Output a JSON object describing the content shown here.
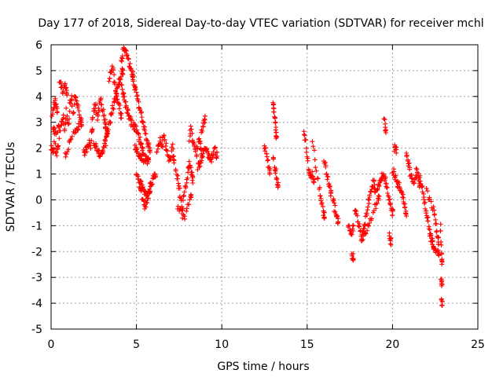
{
  "chart_data": {
    "type": "scatter",
    "title": "Day 177 of 2018, Sidereal Day-to-day VTEC variation (SDTVAR) for receiver mchl",
    "xlabel": "GPS time / hours",
    "ylabel": "SDTVAR / TECUs",
    "xlim": [
      0,
      25
    ],
    "ylim": [
      -5,
      6
    ],
    "x_ticks": [
      "0",
      "5",
      "10",
      "15",
      "20",
      "25"
    ],
    "y_ticks": [
      "-5",
      "-4",
      "-3",
      "-2",
      "-1",
      "0",
      "1",
      "2",
      "3",
      "4",
      "5",
      "6"
    ],
    "grid": true,
    "marker": "+",
    "series": [
      {
        "name": "SDTVAR",
        "color": "#ff0000",
        "segments": [
          {
            "x": [
              0.0,
              0.1,
              0.2,
              0.3,
              0.4
            ],
            "y": [
              2.0,
              1.8,
              2.2,
              1.7,
              2.0
            ]
          },
          {
            "x": [
              0.05,
              0.15,
              0.25,
              0.35
            ],
            "y": [
              3.3,
              3.6,
              3.9,
              3.5
            ]
          },
          {
            "x": [
              0.1,
              0.2,
              0.3,
              0.45
            ],
            "y": [
              2.8,
              2.7,
              2.6,
              2.9
            ]
          },
          {
            "x": [
              0.5,
              0.6,
              0.7,
              0.8,
              0.9,
              1.0,
              1.1,
              1.2,
              1.3,
              1.4,
              1.5,
              1.6,
              1.7,
              1.8
            ],
            "y": [
              2.4,
              2.9,
              3.2,
              2.6,
              3.5,
              2.8,
              3.7,
              3.9,
              3.3,
              4.1,
              3.8,
              3.6,
              3.2,
              3.0
            ]
          },
          {
            "x": [
              0.5,
              0.6,
              0.7,
              0.8,
              0.9
            ],
            "y": [
              4.6,
              4.4,
              4.2,
              4.5,
              4.1
            ]
          },
          {
            "x": [
              0.8,
              1.0,
              1.2,
              1.4,
              1.6
            ],
            "y": [
              1.7,
              2.1,
              2.4,
              2.7,
              2.8
            ]
          },
          {
            "x": [
              1.9,
              2.0,
              2.1,
              2.2,
              2.3,
              2.4
            ],
            "y": [
              1.8,
              1.9,
              2.0,
              2.2,
              2.1,
              2.6
            ]
          },
          {
            "x": [
              2.4,
              2.5,
              2.6,
              2.7,
              2.8,
              2.9,
              3.0,
              3.1,
              3.2
            ],
            "y": [
              3.1,
              3.4,
              3.7,
              3.2,
              3.5,
              3.8,
              3.6,
              3.3,
              2.9
            ]
          },
          {
            "x": [
              2.5,
              2.6,
              2.7,
              2.8,
              2.9,
              3.0,
              3.1,
              3.2,
              3.3
            ],
            "y": [
              2.3,
              2.1,
              1.9,
              1.8,
              1.7,
              1.9,
              2.0,
              2.4,
              2.7
            ]
          },
          {
            "x": [
              3.2,
              3.3,
              3.4,
              3.5,
              3.6,
              3.7,
              3.8,
              3.9,
              4.0,
              4.1,
              4.2
            ],
            "y": [
              2.2,
              2.6,
              2.8,
              3.2,
              3.5,
              3.8,
              4.1,
              4.3,
              4.6,
              4.8,
              5.0
            ]
          },
          {
            "x": [
              3.4,
              3.5,
              3.6,
              3.7,
              3.8,
              3.9,
              4.0,
              4.1
            ],
            "y": [
              4.5,
              4.9,
              5.2,
              4.6,
              4.2,
              3.9,
              3.6,
              3.3
            ]
          },
          {
            "x": [
              4.1,
              4.2,
              4.3,
              4.4,
              4.5,
              4.6,
              4.7,
              4.8
            ],
            "y": [
              5.3,
              5.7,
              5.9,
              5.8,
              5.5,
              5.2,
              5.0,
              4.8
            ]
          },
          {
            "x": [
              4.1,
              4.2,
              4.3,
              4.4,
              4.5,
              4.6,
              4.7,
              4.8,
              4.9,
              5.0,
              5.1,
              5.2,
              5.3,
              5.4
            ],
            "y": [
              4.4,
              4.1,
              3.9,
              3.6,
              3.4,
              3.2,
              3.0,
              2.9,
              2.8,
              2.7,
              2.5,
              2.3,
              2.1,
              1.9
            ]
          },
          {
            "x": [
              4.8,
              4.9,
              5.0,
              5.1,
              5.2,
              5.3,
              5.4,
              5.5,
              5.6,
              5.7,
              5.8
            ],
            "y": [
              4.6,
              4.3,
              4.1,
              3.8,
              3.5,
              3.2,
              2.9,
              2.6,
              2.3,
              2.1,
              1.9
            ]
          },
          {
            "x": [
              4.9,
              5.0,
              5.1,
              5.2,
              5.3,
              5.4,
              5.5,
              5.6,
              5.7
            ],
            "y": [
              2.0,
              1.9,
              1.8,
              1.7,
              1.7,
              1.6,
              1.6,
              1.5,
              1.5
            ]
          },
          {
            "x": [
              5.0,
              5.1,
              5.2,
              5.3,
              5.4,
              5.5,
              5.6,
              5.7,
              5.8,
              5.9,
              6.0,
              6.1
            ],
            "y": [
              1.0,
              0.8,
              0.5,
              0.2,
              0.0,
              -0.2,
              -0.1,
              0.3,
              0.5,
              0.7,
              0.9,
              1.0
            ]
          },
          {
            "x": [
              5.2,
              5.3,
              5.4,
              5.5,
              5.6,
              5.7,
              5.8
            ],
            "y": [
              0.8,
              0.6,
              0.4,
              0.3,
              0.2,
              0.1,
              0.4
            ]
          },
          {
            "x": [
              6.2,
              6.3,
              6.4,
              6.5,
              6.6,
              6.7,
              6.8,
              6.9,
              7.0,
              7.1,
              7.2
            ],
            "y": [
              1.9,
              2.1,
              2.3,
              2.0,
              2.4,
              2.2,
              1.8,
              1.6,
              1.7,
              2.0,
              1.5
            ]
          },
          {
            "x": [
              7.3,
              7.4,
              7.5,
              7.6,
              7.7,
              7.8,
              7.9,
              8.0,
              8.1,
              8.2,
              8.3
            ],
            "y": [
              1.2,
              0.8,
              0.4,
              0.0,
              -0.4,
              0.2,
              0.6,
              1.0,
              1.4,
              1.2,
              0.8
            ]
          },
          {
            "x": [
              7.4,
              7.6,
              7.8,
              8.0,
              8.2
            ],
            "y": [
              -0.2,
              -0.5,
              -0.7,
              -0.3,
              0.1
            ]
          },
          {
            "x": [
              8.1,
              8.2,
              8.3,
              8.4,
              8.5,
              8.6,
              8.7,
              8.8
            ],
            "y": [
              2.4,
              2.8,
              2.2,
              2.0,
              1.8,
              2.1,
              2.3,
              1.9
            ]
          },
          {
            "x": [
              8.6,
              8.7,
              8.8,
              8.9,
              9.0,
              9.1,
              9.2,
              9.3,
              9.4,
              9.5,
              9.6,
              9.7
            ],
            "y": [
              1.2,
              1.4,
              1.6,
              1.8,
              2.0,
              1.9,
              1.7,
              1.5,
              1.6,
              1.8,
              2.0,
              1.7
            ]
          },
          {
            "x": [
              8.8,
              8.9,
              9.0
            ],
            "y": [
              2.7,
              2.9,
              3.1
            ]
          },
          {
            "x": [
              12.5,
              12.6,
              12.7,
              12.8
            ],
            "y": [
              2.2,
              1.8,
              1.4,
              1.1
            ]
          },
          {
            "x": [
              13.0,
              13.05,
              13.1,
              13.15,
              13.2
            ],
            "y": [
              3.8,
              3.5,
              3.2,
              2.8,
              2.5
            ]
          },
          {
            "x": [
              13.0,
              13.1,
              13.2,
              13.3
            ],
            "y": [
              1.6,
              1.3,
              1.0,
              0.6
            ]
          },
          {
            "x": [
              14.8,
              14.9,
              15.0,
              15.1,
              15.2,
              15.3,
              15.4
            ],
            "y": [
              2.6,
              2.4,
              1.6,
              1.2,
              0.9,
              1.0,
              0.7
            ]
          },
          {
            "x": [
              15.3,
              15.5,
              15.7,
              15.8,
              15.9,
              16.0
            ],
            "y": [
              2.3,
              1.3,
              0.5,
              0.0,
              -0.3,
              -0.6
            ]
          },
          {
            "x": [
              16.0,
              16.1,
              16.2,
              16.3,
              16.4
            ],
            "y": [
              1.5,
              1.2,
              0.9,
              0.6,
              0.3
            ]
          },
          {
            "x": [
              16.5,
              16.6,
              16.7,
              16.8
            ],
            "y": [
              0.0,
              -0.3,
              -0.5,
              -0.8
            ]
          },
          {
            "x": [
              17.4,
              17.5,
              17.6,
              17.7
            ],
            "y": [
              -1.1,
              -1.2,
              -1.4,
              -1.0
            ]
          },
          {
            "x": [
              17.6,
              17.7
            ],
            "y": [
              -2.1,
              -2.2
            ]
          },
          {
            "x": [
              17.8,
              17.9,
              18.0,
              18.1,
              18.2,
              18.3,
              18.4,
              18.5,
              18.6,
              18.7,
              18.8,
              18.9,
              19.0
            ],
            "y": [
              -0.3,
              -0.6,
              -0.9,
              -1.2,
              -1.5,
              -1.2,
              -0.8,
              -0.4,
              0.0,
              0.3,
              0.5,
              0.7,
              0.4
            ]
          },
          {
            "x": [
              18.2,
              18.4,
              18.6,
              18.8,
              19.0,
              19.2
            ],
            "y": [
              -1.6,
              -1.3,
              -1.0,
              -0.6,
              -0.2,
              0.1
            ]
          },
          {
            "x": [
              19.1,
              19.2,
              19.3,
              19.4,
              19.5,
              19.6,
              19.7,
              19.8,
              19.9,
              20.0
            ],
            "y": [
              0.3,
              0.6,
              0.8,
              1.0,
              0.9,
              0.7,
              0.4,
              0.1,
              -0.2,
              -0.5
            ]
          },
          {
            "x": [
              19.5,
              19.6
            ],
            "y": [
              3.2,
              2.7
            ]
          },
          {
            "x": [
              19.8,
              19.9
            ],
            "y": [
              -1.3,
              -1.6
            ]
          },
          {
            "x": [
              20.0,
              20.1,
              20.2,
              20.3,
              20.4,
              20.5,
              20.6,
              20.7,
              20.8
            ],
            "y": [
              1.1,
              1.0,
              0.8,
              0.6,
              0.5,
              0.3,
              0.1,
              -0.2,
              -0.5
            ]
          },
          {
            "x": [
              20.1,
              20.2
            ],
            "y": [
              2.0,
              1.9
            ]
          },
          {
            "x": [
              20.8,
              20.9,
              21.0,
              21.1,
              21.2,
              21.3,
              21.4,
              21.5,
              21.6
            ],
            "y": [
              1.7,
              1.5,
              1.2,
              0.9,
              0.6,
              0.8,
              1.1,
              0.9,
              0.6
            ]
          },
          {
            "x": [
              21.6,
              21.7,
              21.8,
              21.9,
              22.0,
              22.1,
              22.2,
              22.3,
              22.4
            ],
            "y": [
              1.0,
              0.6,
              0.2,
              -0.2,
              -0.6,
              -0.9,
              -1.2,
              -1.5,
              -1.8
            ]
          },
          {
            "x": [
              22.0,
              22.2,
              22.4,
              22.5,
              22.6,
              22.7
            ],
            "y": [
              0.3,
              0.0,
              -0.4,
              -0.8,
              -1.2,
              -1.6
            ]
          },
          {
            "x": [
              22.2,
              22.4,
              22.6,
              22.7
            ],
            "y": [
              -1.5,
              -1.8,
              -2.0,
              -2.1
            ]
          },
          {
            "x": [
              22.8,
              22.85,
              22.9
            ],
            "y": [
              -0.9,
              -1.8,
              -2.4
            ]
          },
          {
            "x": [
              22.85,
              22.9
            ],
            "y": [
              -3.1,
              -3.3
            ]
          },
          {
            "x": [
              22.85,
              22.9
            ],
            "y": [
              -3.9,
              -4.0
            ]
          }
        ]
      }
    ]
  }
}
